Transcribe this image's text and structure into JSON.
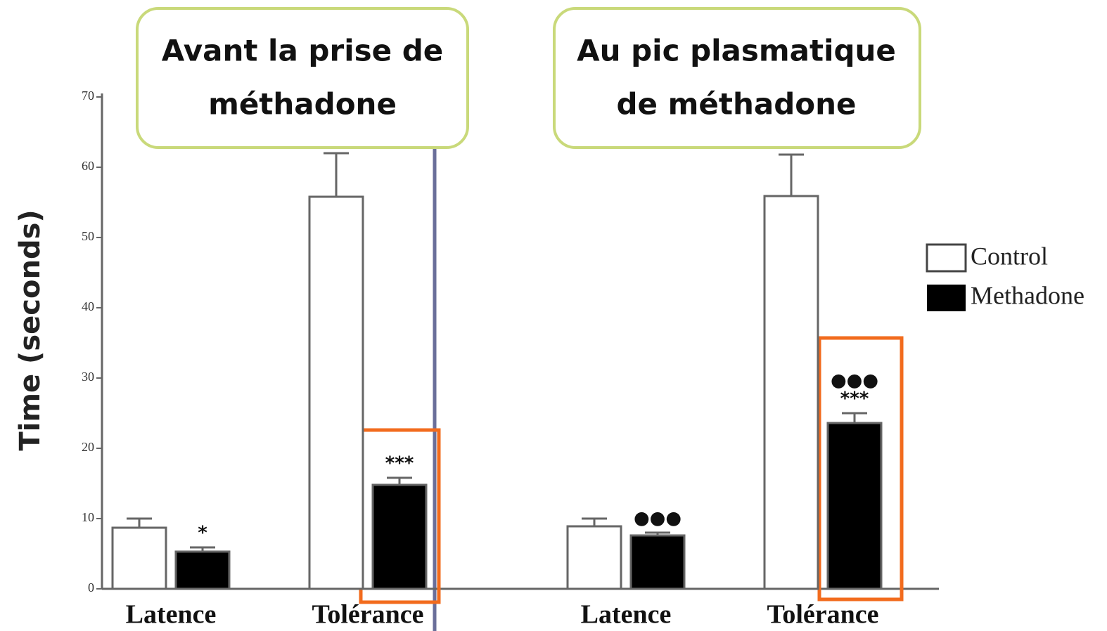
{
  "chart_data": {
    "type": "bar",
    "ylabel": "Time (seconds)",
    "panel_titles": [
      [
        "Avant la prise de",
        "méthadone"
      ],
      [
        "Au pic plasmatique",
        "de méthadone"
      ]
    ],
    "categories": [
      "Latence",
      "Tolérance",
      "Latence",
      "Tolérance"
    ],
    "series": [
      {
        "name": "Control",
        "color": "#ffffff",
        "values": [
          8.7,
          55.8,
          8.9,
          55.9
        ],
        "errors": [
          1.3,
          6.2,
          1.1,
          5.9
        ]
      },
      {
        "name": "Methadone",
        "color": "#000000",
        "values": [
          5.3,
          14.8,
          7.6,
          23.6
        ],
        "errors": [
          0.6,
          1.0,
          0.4,
          1.4
        ],
        "significance": [
          [
            "*"
          ],
          [
            "***"
          ],
          [
            "●●●"
          ],
          [
            "●●●",
            "***"
          ]
        ]
      }
    ],
    "ylim": [
      0,
      70
    ],
    "yticks": [
      0,
      10,
      20,
      30,
      40,
      50,
      60,
      70
    ]
  }
}
